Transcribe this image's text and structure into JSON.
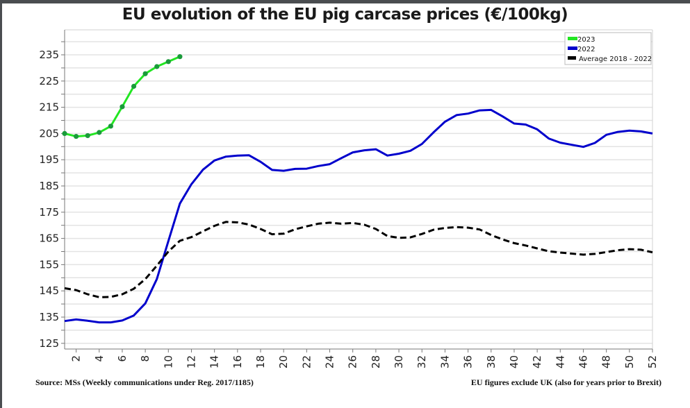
{
  "chart_data": {
    "type": "line",
    "title": "EU evolution of the EU pig carcase prices (€/100kg)",
    "xlabel": "",
    "ylabel": "",
    "xlim": [
      1,
      52
    ],
    "ylim": [
      120,
      245
    ],
    "grid": true,
    "yticks": [
      125,
      135,
      145,
      155,
      165,
      175,
      185,
      195,
      205,
      215,
      225,
      235
    ],
    "xticks": [
      2,
      4,
      6,
      8,
      10,
      12,
      14,
      16,
      18,
      20,
      22,
      24,
      26,
      28,
      30,
      32,
      34,
      36,
      38,
      40,
      42,
      44,
      46,
      48,
      50,
      52
    ],
    "legend_position": "top-right",
    "series": [
      {
        "name": "2023",
        "color": "#22e622",
        "marker_color": "#1a9a3a",
        "style": "solid-markers",
        "x": [
          1,
          2,
          3,
          4,
          5,
          6,
          7,
          8,
          9,
          10,
          11
        ],
        "values": [
          205.0,
          203.9,
          204.2,
          205.4,
          207.8,
          215.2,
          223.0,
          227.8,
          230.5,
          232.4,
          234.3
        ]
      },
      {
        "name": "2022",
        "color": "#0000cc",
        "style": "solid",
        "x": [
          1,
          2,
          3,
          4,
          5,
          6,
          7,
          8,
          9,
          10,
          11,
          12,
          13,
          14,
          15,
          16,
          17,
          18,
          19,
          20,
          21,
          22,
          23,
          24,
          25,
          26,
          27,
          28,
          29,
          30,
          31,
          32,
          33,
          34,
          35,
          36,
          37,
          38,
          39,
          40,
          41,
          42,
          43,
          44,
          45,
          46,
          47,
          48,
          49,
          50,
          51,
          52
        ],
        "values": [
          133.5,
          134.1,
          133.6,
          133.0,
          133.0,
          133.7,
          135.6,
          140.2,
          149.5,
          164.0,
          178.3,
          185.7,
          191.2,
          194.7,
          196.2,
          196.6,
          196.7,
          194.2,
          191.1,
          190.8,
          191.5,
          191.6,
          192.6,
          193.3,
          195.6,
          197.8,
          198.6,
          199.0,
          196.6,
          197.3,
          198.4,
          201.0,
          205.4,
          209.5,
          212.0,
          212.6,
          213.8,
          214.0,
          211.5,
          208.8,
          208.4,
          206.6,
          203.1,
          201.5,
          200.7,
          199.9,
          201.4,
          204.5,
          205.6,
          206.1,
          205.8,
          205.0
        ]
      },
      {
        "name": "Average 2018 - 2022",
        "color": "#000000",
        "style": "dashed",
        "x": [
          1,
          2,
          3,
          4,
          5,
          6,
          7,
          8,
          9,
          10,
          11,
          12,
          13,
          14,
          15,
          16,
          17,
          18,
          19,
          20,
          21,
          22,
          23,
          24,
          25,
          26,
          27,
          28,
          29,
          30,
          31,
          32,
          33,
          34,
          35,
          36,
          37,
          38,
          39,
          40,
          41,
          42,
          43,
          44,
          45,
          46,
          47,
          48,
          49,
          50,
          51,
          52
        ],
        "values": [
          146.0,
          145.3,
          143.7,
          142.6,
          142.7,
          143.7,
          145.8,
          149.5,
          154.6,
          160.0,
          164.1,
          165.5,
          167.7,
          169.8,
          171.3,
          171.1,
          170.3,
          168.6,
          166.6,
          166.8,
          168.5,
          169.6,
          170.6,
          171.0,
          170.6,
          170.9,
          170.2,
          168.6,
          165.9,
          165.2,
          165.4,
          166.7,
          168.3,
          169.0,
          169.3,
          169.1,
          168.4,
          166.3,
          164.6,
          163.2,
          162.3,
          161.2,
          160.1,
          159.6,
          159.2,
          158.8,
          159.1,
          159.8,
          160.5,
          160.9,
          160.7,
          159.7
        ]
      }
    ]
  },
  "footer": {
    "source": "Source: MSs (Weekly communications under Reg. 2017/1185)",
    "note": "EU figures exclude UK (also for years prior to Brexit)"
  }
}
